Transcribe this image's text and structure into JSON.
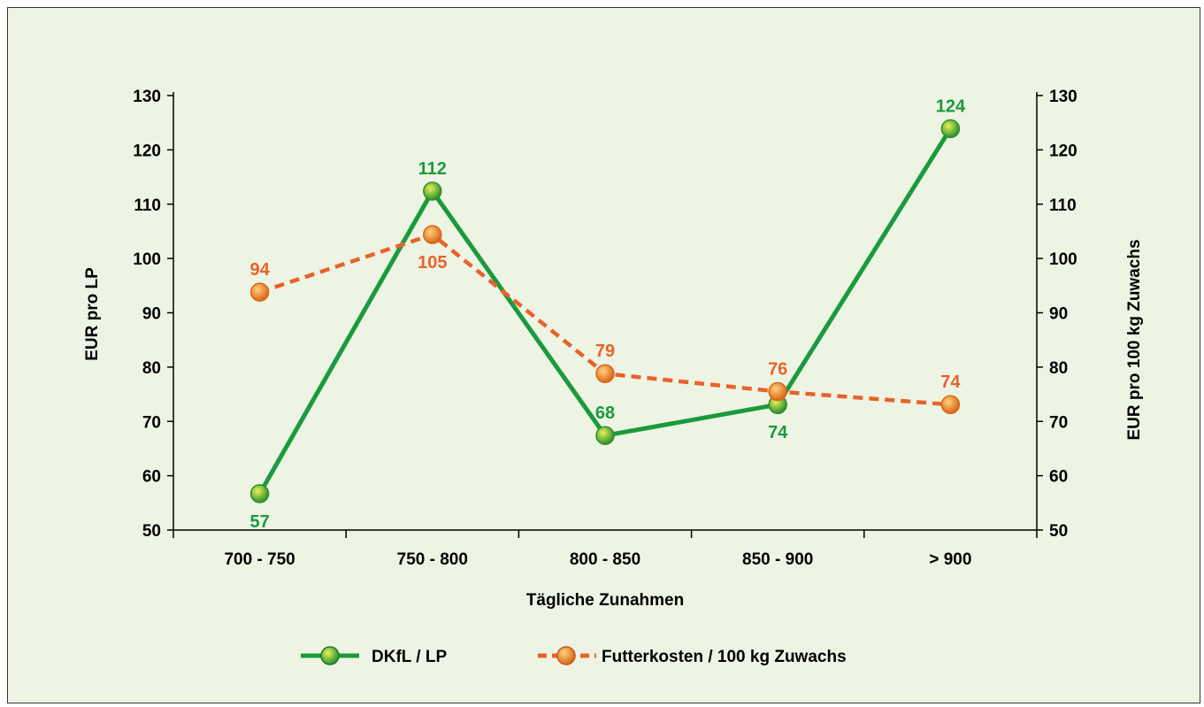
{
  "chart_data": {
    "type": "line",
    "xlabel": "Tägliche Zunahmen",
    "ylabel_left": "EUR pro LP",
    "ylabel_right": "EUR pro 100 kg Zuwachs",
    "categories": [
      "700 - 750",
      "750 - 800",
      "800 - 850",
      "850 - 900",
      "> 900"
    ],
    "ylim": [
      50,
      130
    ],
    "yticks": [
      "50",
      "60",
      "70",
      "80",
      "90",
      "100",
      "110",
      "120",
      "130"
    ],
    "grid": false,
    "legend_position": "bottom",
    "series": [
      {
        "name": "DKfL / LP",
        "axis": "left",
        "values": [
          57,
          112,
          68,
          74,
          124
        ],
        "plot_values": [
          56.7,
          112.4,
          67.4,
          73.1,
          123.9
        ],
        "labels": [
          "57",
          "112",
          "68",
          "74",
          "124"
        ],
        "label_pos": [
          "below",
          "above",
          "above",
          "below",
          "above"
        ],
        "style": "solid",
        "color": "#1a9a3e",
        "marker_light": "#e6f25a",
        "marker_dark": "#2f8f2c"
      },
      {
        "name": "Futterkosten / 100 kg Zuwachs",
        "axis": "right",
        "values": [
          94,
          105,
          79,
          76,
          74
        ],
        "plot_values": [
          93.8,
          104.4,
          78.8,
          75.5,
          73.1
        ],
        "labels": [
          "94",
          "105",
          "79",
          "76",
          "74"
        ],
        "label_pos": [
          "above",
          "below",
          "above",
          "above",
          "above"
        ],
        "style": "dashed",
        "color": "#e8622c",
        "marker_light": "#ffd27a",
        "marker_dark": "#d9661a"
      }
    ]
  }
}
